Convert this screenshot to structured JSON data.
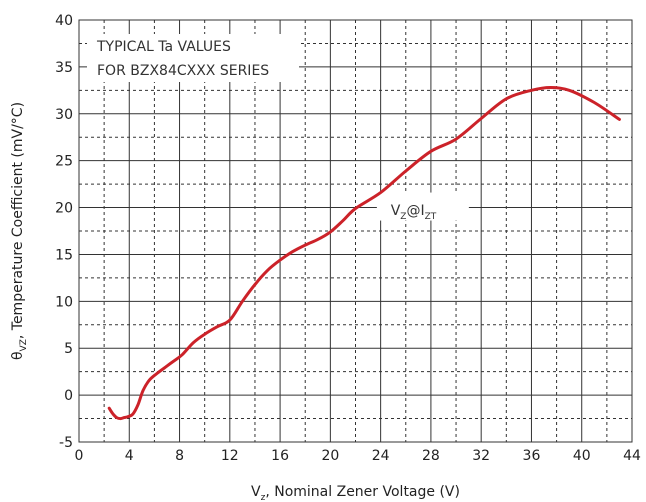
{
  "chart_data": {
    "type": "line",
    "title": "",
    "xlabel": {
      "prefix": "V",
      "sub": "z",
      "rest": ", Nominal Zener Voltage (V)"
    },
    "ylabel": {
      "prefix": "θ",
      "sub": "VZ",
      "rest": ", Temperature Coefficient (mV/°C)"
    },
    "xlim": [
      0,
      44
    ],
    "ylim": [
      -5,
      40
    ],
    "xticks": [
      0,
      4,
      8,
      12,
      16,
      20,
      24,
      28,
      32,
      36,
      40,
      44
    ],
    "yticks": [
      -5,
      0,
      5,
      10,
      15,
      20,
      25,
      30,
      35,
      40
    ],
    "grid": {
      "major": "solid",
      "minor": "dashed",
      "x_minor_step": 2,
      "y_minor_step": 2.5
    },
    "annotations": {
      "note_line1": "TYPICAL Ta VALUES",
      "note_line2": "FOR BZX84CXXX SERIES",
      "curve_label": {
        "prefix": "V",
        "sub1": "Z",
        "mid": "@I",
        "sub2": "ZT"
      }
    },
    "series": [
      {
        "color": "#cc2229",
        "x": [
          2.4,
          2.7,
          3.0,
          3.3,
          3.6,
          3.9,
          4.3,
          4.7,
          5.1,
          5.6,
          6.2,
          6.8,
          7.5,
          8.2,
          9.1,
          10,
          11,
          12,
          13,
          14,
          15,
          16,
          17,
          18,
          19,
          20,
          21,
          22,
          24,
          26,
          28,
          30,
          32,
          34,
          36,
          37.5,
          39,
          41,
          43
        ],
        "values": [
          -1.4,
          -2.0,
          -2.4,
          -2.5,
          -2.4,
          -2.3,
          -2.0,
          -1.0,
          0.5,
          1.6,
          2.3,
          2.9,
          3.6,
          4.3,
          5.6,
          6.5,
          7.3,
          8.0,
          10.0,
          11.8,
          13.3,
          14.4,
          15.3,
          16.0,
          16.6,
          17.4,
          18.6,
          19.9,
          21.6,
          23.9,
          26.0,
          27.3,
          29.5,
          31.6,
          32.5,
          32.8,
          32.5,
          31.2,
          29.4
        ]
      }
    ]
  }
}
